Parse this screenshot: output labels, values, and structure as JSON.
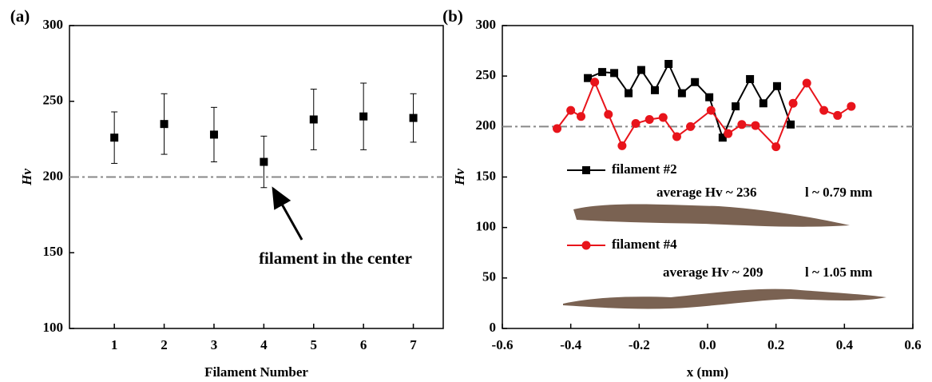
{
  "chart_data": [
    {
      "type": "scatter",
      "panel_label": "(a)",
      "x_label": "Filament Number",
      "y_label": "Hv",
      "x": [
        1,
        2,
        3,
        4,
        5,
        6,
        7
      ],
      "values": [
        226,
        235,
        228,
        210,
        238,
        240,
        239
      ],
      "errors": [
        17,
        20,
        18,
        17,
        20,
        22,
        16
      ],
      "color": "#000000",
      "xlim": [
        0.1,
        7.6
      ],
      "xticks": [
        1,
        2,
        3,
        4,
        5,
        6,
        7
      ],
      "ylim": [
        100,
        300
      ],
      "yticks": [
        100,
        150,
        200,
        250,
        300
      ],
      "reference_line": 200,
      "annotation": "filament in the center"
    },
    {
      "type": "line",
      "panel_label": "(b)",
      "x_label": "x (mm)",
      "y_label": "Hv",
      "series": [
        {
          "name": "filament #2",
          "color": "#000000",
          "marker": "square",
          "x": [
            -0.35,
            -0.308,
            -0.273,
            -0.231,
            -0.194,
            -0.154,
            -0.114,
            -0.075,
            -0.037,
            0.005,
            0.044,
            0.082,
            0.124,
            0.163,
            0.203,
            0.243
          ],
          "values": [
            248,
            254,
            253,
            233,
            256,
            236,
            262,
            233,
            244,
            229,
            189,
            220,
            247,
            223,
            240,
            202
          ]
        },
        {
          "name": "filament #4",
          "color": "#e8141b",
          "marker": "circle",
          "x": [
            -0.44,
            -0.4,
            -0.37,
            -0.33,
            -0.29,
            -0.25,
            -0.21,
            -0.17,
            -0.13,
            -0.09,
            -0.05,
            0.01,
            0.06,
            0.1,
            0.14,
            0.2,
            0.25,
            0.29,
            0.34,
            0.38,
            0.42
          ],
          "values": [
            198,
            216,
            210,
            244,
            212,
            181,
            203,
            207,
            209,
            190,
            200,
            216,
            193,
            202,
            201,
            180,
            223,
            243,
            216,
            211,
            220
          ]
        }
      ],
      "xlim": [
        -0.6,
        0.6
      ],
      "xticks": [
        -0.6,
        -0.4,
        -0.2,
        {
          "value": 0,
          "label": "0.0"
        },
        0.2,
        0.4,
        0.6
      ],
      "ylim": [
        0,
        300
      ],
      "yticks": [
        0,
        50,
        100,
        150,
        200,
        250,
        300
      ],
      "reference_line": 200,
      "annotations": [
        "average Hv ~ 236",
        "l ~ 0.79 mm",
        "average Hv ~ 209",
        "l ~ 1.05 mm"
      ]
    }
  ]
}
